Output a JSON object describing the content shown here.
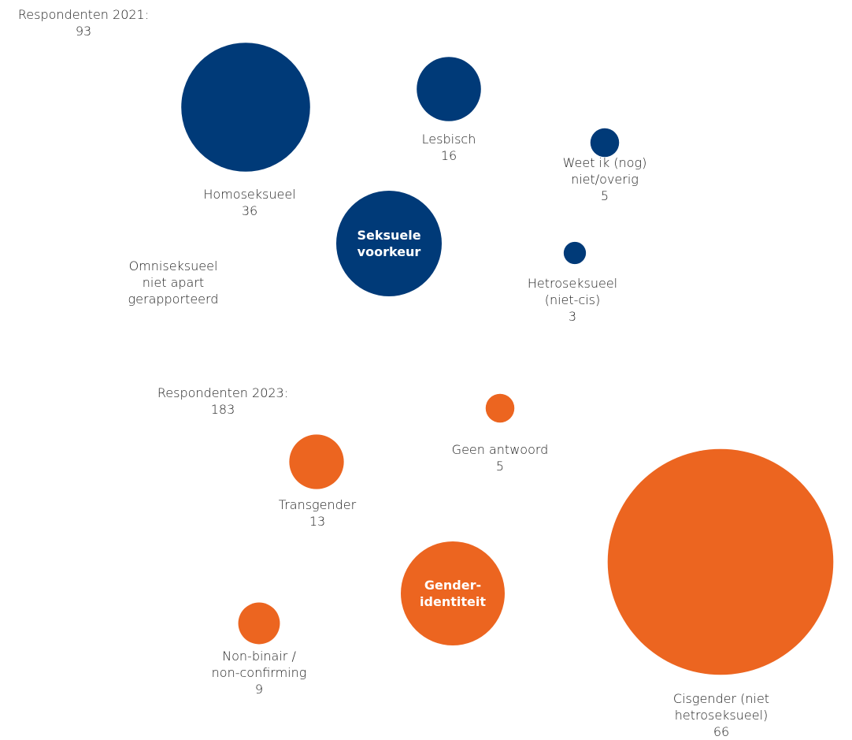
{
  "chart_data": {
    "type": "bubble",
    "groups": [
      {
        "name": "Seksuele\nvoorkeur",
        "color": "#003a78",
        "respondents_label": "Respondenten 2021:",
        "respondents": 93,
        "categories": [
          "Homoseksueel",
          "Lesbisch",
          "Weet ik (nog)\nniet/overig",
          "Hetroseksueel\n(niet-cis)"
        ],
        "values": [
          36,
          16,
          5,
          3
        ]
      },
      {
        "name": "Gender-\nidentiteit",
        "color": "#ec6520",
        "respondents_label": "Respondenten 2023:",
        "respondents": 183,
        "categories": [
          "Transgender",
          "Geen antwoord",
          "Non-binair /\nnon-confirming",
          "Cisgender (niet hetroseksueel)"
        ],
        "values": [
          13,
          5,
          9,
          66
        ]
      }
    ],
    "annotations": [
      "Omniseksueel\nniet apart\ngerapporteerd"
    ]
  }
}
